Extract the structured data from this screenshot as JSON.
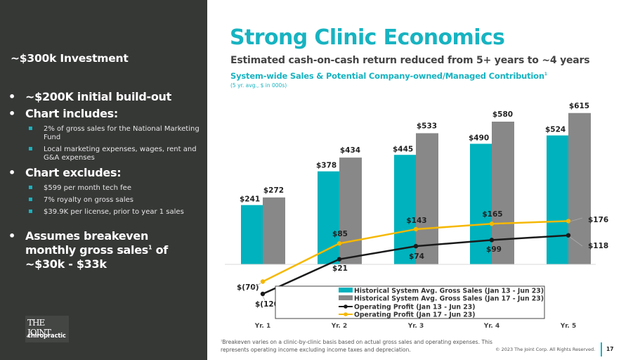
{
  "sidebar": {
    "investment": "~$300k Investment",
    "bullets": [
      {
        "text": "~$200K initial build-out",
        "subs": []
      },
      {
        "text": "Chart includes:",
        "subs": [
          "2% of gross sales for the National Marketing Fund",
          "Local marketing expenses, wages, rent and G&A expenses"
        ]
      },
      {
        "text": "Chart excludes:",
        "subs": [
          "$599 per month tech fee",
          "7% royalty on gross sales",
          "$39.9K per license, prior to year 1 sales"
        ]
      },
      {
        "text_pre": "Assumes breakeven monthly gross sales",
        "text_sup": "1",
        "text_post": " of ~$30k - $33k"
      }
    ],
    "bullet_glyph": "•",
    "logo": {
      "line1": "THE JOINT",
      "line2": "chiropractic"
    }
  },
  "header": {
    "title": "Strong Clinic Economics",
    "subtitle": "Estimated cash-on-cash return reduced from 5+ years to ~4 years"
  },
  "colors": {
    "teal": "#00b2bd",
    "gray": "#888888",
    "black": "#1a1a1a",
    "yellow": "#f5b800",
    "sidebar": "#363836"
  },
  "chart_data": {
    "type": "bar",
    "title": "System-wide Sales & Potential Company-owned/Managed Contribution",
    "title_sup": "1",
    "subtitle": "(5 yr. avg., $ in 000s)",
    "categories": [
      "Yr. 1",
      "Yr. 2",
      "Yr. 3",
      "Yr. 4",
      "Yr. 5"
    ],
    "series": [
      {
        "name": "Historical System Avg. Gross Sales (Jan 13 -  Jun 23)",
        "type": "bar",
        "color": "#00b2bd",
        "values": [
          241,
          378,
          445,
          490,
          524
        ],
        "labels": [
          "$241",
          "$378",
          "$445",
          "$490",
          "$524"
        ]
      },
      {
        "name": "Historical System Avg. Gross Sales (Jan 17 - Jun 23)",
        "type": "bar",
        "color": "#888888",
        "values": [
          272,
          434,
          533,
          580,
          615
        ],
        "labels": [
          "$272",
          "$434",
          "$533",
          "$580",
          "$615"
        ]
      },
      {
        "name": "Operating Profit (Jan 13 - Jun 23)",
        "type": "line",
        "color": "#1a1a1a",
        "values": [
          -120,
          21,
          74,
          99,
          118
        ],
        "labels": [
          "$(120)",
          "$21",
          "$74",
          "$99",
          "$118"
        ]
      },
      {
        "name": "Operating Profit (Jan 17 - Jun 23)",
        "type": "line",
        "color": "#f5b800",
        "values": [
          -70,
          85,
          143,
          165,
          176
        ],
        "labels": [
          "$(70)",
          "$85",
          "$143",
          "$165",
          "$176"
        ]
      }
    ],
    "xlabel": "",
    "ylabel": "",
    "grid": false,
    "legend": "bottom-center"
  },
  "footer": {
    "footnote_sup": "1",
    "footnote": "Breakeven varies on a clinic-by-clinic basis based on actual gross sales and operating expenses. This represents operating income excluding income taxes and depreciation.",
    "copyright": "© 2023 The Joint Corp. All Rights Reserved.",
    "page_number": "17"
  }
}
